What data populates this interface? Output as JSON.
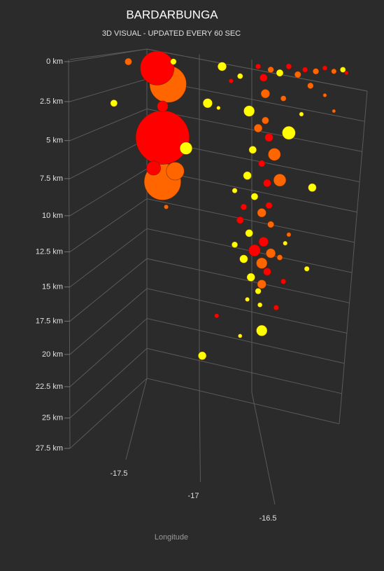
{
  "chart_data": {
    "type": "scatter3d",
    "title": "BARDARBUNGA",
    "subtitle": "3D VISUAL - UPDATED EVERY 60 SEC",
    "xlabel": "Longitude",
    "xlim": [
      -17.8,
      -16.45
    ],
    "xticks": [
      -17.5,
      -17,
      -16.5
    ],
    "ylim": [
      0,
      27.5
    ],
    "yticks": [
      {
        "value": 0,
        "label": "0 km"
      },
      {
        "value": 2.5,
        "label": "2.5 km"
      },
      {
        "value": 5,
        "label": "5 km"
      },
      {
        "value": 7.5,
        "label": "7.5 km"
      },
      {
        "value": 10,
        "label": "10 km"
      },
      {
        "value": 12.5,
        "label": "12.5 km"
      },
      {
        "value": 15,
        "label": "15 km"
      },
      {
        "value": 17.5,
        "label": "17.5 km"
      },
      {
        "value": 20,
        "label": "20 km"
      },
      {
        "value": 22.5,
        "label": "22.5 km"
      },
      {
        "value": 25,
        "label": "25 km"
      },
      {
        "value": 27.5,
        "label": "27.5 km"
      }
    ],
    "grid": true,
    "x": [
      -17.52,
      -17.58,
      -17.55,
      -17.55,
      -17.48,
      -17.6,
      -17.55,
      -17.42,
      -17.82,
      -17.3,
      -17.22,
      -17.74,
      -17.53,
      -17.49,
      -17.07,
      -17.02,
      -16.96,
      -16.98,
      -17.05,
      -16.93,
      -16.85,
      -17.0,
      -17.08,
      -16.97,
      -16.9,
      -17.04,
      -16.96,
      -17.0,
      -17.12,
      -16.95,
      -17.07,
      -16.99,
      -17.04,
      -16.95,
      -17.1,
      -17.0,
      -16.97,
      -17.06,
      -17.0,
      -17.02,
      -16.88,
      -16.9,
      -16.87,
      -17.15,
      -16.72,
      -16.75,
      -16.85,
      -17.1,
      -17.15,
      -16.92,
      -17.01,
      -17.08,
      -17.25,
      -17.12,
      -17.0,
      -17.33,
      -16.88,
      -16.98,
      -16.99,
      -17.02,
      -16.95,
      -16.9,
      -16.85,
      -16.8,
      -16.76,
      -16.7,
      -16.65,
      -16.6,
      -16.55,
      -16.53,
      -16.73,
      -16.65,
      -17.12,
      -17.17,
      -16.78,
      -16.6,
      -17.24
    ],
    "y": [
      1.4,
      0.4,
      7.7,
      4.8,
      7.0,
      6.8,
      2.8,
      5.5,
      2.6,
      2.6,
      0.3,
      0,
      9.4,
      0,
      3.1,
      4.2,
      4.8,
      3.7,
      5.6,
      5.9,
      4.5,
      6.5,
      7.3,
      7.8,
      7.6,
      8.7,
      9.3,
      9.8,
      10.3,
      10.6,
      11.2,
      11.8,
      12.4,
      12.6,
      13.0,
      13.3,
      13.9,
      14.3,
      14.8,
      15.3,
      14.6,
      12.9,
      11.9,
      12.0,
      8.1,
      13.7,
      11.3,
      9.4,
      8.3,
      16.5,
      16.3,
      15.9,
      17.1,
      18.6,
      18.2,
      20.1,
      2.3,
      2.0,
      1.0,
      0.3,
      0.5,
      0.7,
      0.3,
      0.8,
      0.5,
      0.6,
      0.4,
      0.6,
      0.5,
      0.7,
      1.5,
      2.1,
      0.9,
      1.2,
      3.3,
      3.1,
      2.9
    ],
    "sizes": [
      4.5,
      4.3,
      4.5,
      5.5,
      3.0,
      2.6,
      2.2,
      2.4,
      1.6,
      2.0,
      1.9,
      1.6,
      1.0,
      1.4,
      2.2,
      1.8,
      1.8,
      1.6,
      1.7,
      2.4,
      2.5,
      1.5,
      1.8,
      1.7,
      2.4,
      1.6,
      1.5,
      1.9,
      1.6,
      1.5,
      1.7,
      2.0,
      2.3,
      2.0,
      1.8,
      2.2,
      1.7,
      1.8,
      1.9,
      1.4,
      1.2,
      1.3,
      1.0,
      1.4,
      1.8,
      1.2,
      1.0,
      1.4,
      1.2,
      1.2,
      1.1,
      1.0,
      1.0,
      0.9,
      2.2,
      1.8,
      1.3,
      1.9,
      1.7,
      1.2,
      1.4,
      1.6,
      1.3,
      1.5,
      1.2,
      1.4,
      1.1,
      1.2,
      1.3,
      0.8,
      1.4,
      0.8,
      1.3,
      1.0,
      1.0,
      0.7,
      0.8
    ],
    "colors": [
      "#ff6600",
      "#ff0000",
      "#ff6600",
      "#ff0000",
      "#ff6600",
      "#ff0000",
      "#ff0000",
      "#ffff00",
      "#ffff00",
      "#ffff00",
      "#ffff00",
      "#ff6600",
      "#ff6600",
      "#ffff00",
      "#ffff00",
      "#ff6600",
      "#ff0000",
      "#ff6600",
      "#ffff00",
      "#ff6600",
      "#ffff00",
      "#ff0000",
      "#ffff00",
      "#ff0000",
      "#ff6600",
      "#ffff00",
      "#ff0000",
      "#ff6600",
      "#ff0000",
      "#ff6600",
      "#ffff00",
      "#ff0000",
      "#ff0000",
      "#ff6600",
      "#ffff00",
      "#ff6600",
      "#ff0000",
      "#ffff00",
      "#ff6600",
      "#ffff00",
      "#ff0000",
      "#ff6600",
      "#ffff00",
      "#ffff00",
      "#ffff00",
      "#ffff00",
      "#ff6600",
      "#ff0000",
      "#ffff00",
      "#ff0000",
      "#ffff00",
      "#ffff00",
      "#ff0000",
      "#ffff00",
      "#ffff00",
      "#ffff00",
      "#ff6600",
      "#ff6600",
      "#ff0000",
      "#ff0000",
      "#ff6600",
      "#ffff00",
      "#ff0000",
      "#ff6600",
      "#ff0000",
      "#ff6600",
      "#ff0000",
      "#ff6600",
      "#ffff00",
      "#ff0000",
      "#ff6600",
      "#ff6600",
      "#ffff00",
      "#ff0000",
      "#ffff00",
      "#ff6600",
      "#ffff00"
    ]
  }
}
